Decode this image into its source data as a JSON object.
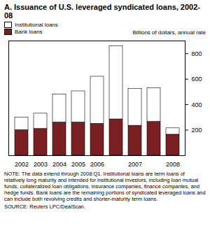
{
  "chart_data": {
    "type": "bar",
    "title": "A. Issuance of U.S. leveraged syndicated loans, 2002-08",
    "y_label": "Billions of dollars, annual rate",
    "categories": [
      "2002",
      "2003",
      "2004",
      "2005",
      "2006",
      null,
      "2007",
      null,
      "2008"
    ],
    "series": [
      {
        "name": "Institutional loans",
        "color": "#ffffff",
        "values": [
          100,
          120,
          220,
          245,
          370,
          575,
          290,
          265,
          50
        ]
      },
      {
        "name": "Bank loans",
        "color": "#7a1f22",
        "values": [
          200,
          210,
          260,
          260,
          250,
          285,
          235,
          265,
          165
        ]
      }
    ],
    "stacked": true,
    "ylim": [
      0,
      900
    ],
    "yticks": [
      200,
      400,
      600,
      800
    ],
    "grid": false,
    "legend": "top-left",
    "note": "NOTE: The data extend through 2008:Q1. Institutional loans are term loans of relatively long maturity and intended for institutional investors, including loan mutual funds, collateralized loan obligations, insurance companies, finance companies, and hedge funds. Bank loans are the remaining portions of syndicated leveraged loans and can include both revolving credits and shorter-maturity term loans.",
    "source": "SOURCE: Reuters LPC/DealScan."
  }
}
